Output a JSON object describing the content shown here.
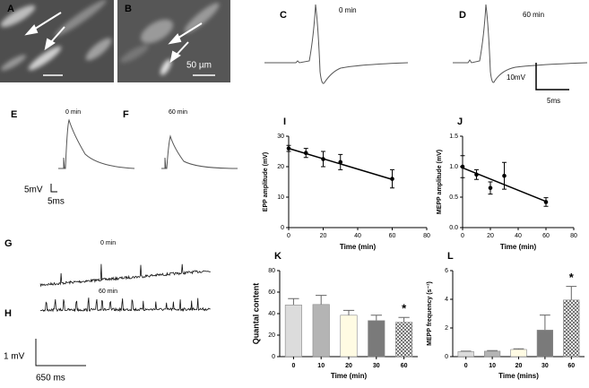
{
  "panels": {
    "A": {
      "label": "A"
    },
    "B": {
      "label": "B",
      "scale": "50 µm"
    },
    "C": {
      "label": "C",
      "time": "0 min"
    },
    "D": {
      "label": "D",
      "time": "60 min",
      "scale_v": "10mV",
      "scale_t": "5ms"
    },
    "E": {
      "label": "E",
      "time": "0 min",
      "scale_v": "5mV",
      "scale_t": "5ms"
    },
    "F": {
      "label": "F",
      "time": "60 min"
    },
    "G": {
      "label": "G",
      "time": "0 min",
      "scale_v": "1 mV",
      "scale_t": "650 ms"
    },
    "H": {
      "label": "H",
      "time": "60 min"
    }
  },
  "chart_data": [
    {
      "type": "scatter",
      "label": "I",
      "xlabel": "Time (min)",
      "ylabel": "EPP amplitude (mV)",
      "x": [
        0,
        10,
        20,
        30,
        60
      ],
      "values": [
        26,
        24.5,
        22.5,
        21.5,
        16
      ],
      "errors": [
        1,
        1.5,
        2.5,
        2.5,
        3
      ],
      "fit": {
        "x": [
          0,
          60
        ],
        "values": [
          26,
          15.8
        ]
      },
      "xlim": [
        0,
        80
      ],
      "xticks": [
        0,
        20,
        40,
        60,
        80
      ],
      "ylim": [
        0,
        30
      ],
      "yticks": [
        0,
        10,
        20,
        30
      ],
      "color": "#000000"
    },
    {
      "type": "scatter",
      "label": "J",
      "xlabel": "Time (min)",
      "ylabel": "MEPP amplitude (mV)",
      "x": [
        0,
        10,
        20,
        30,
        60
      ],
      "values": [
        1.0,
        0.87,
        0.65,
        0.85,
        0.42
      ],
      "errors": [
        0.18,
        0.08,
        0.1,
        0.22,
        0.07
      ],
      "fit": {
        "x": [
          0,
          60
        ],
        "values": [
          0.98,
          0.43
        ]
      },
      "xlim": [
        0,
        80
      ],
      "xticks": [
        0,
        20,
        40,
        60,
        80
      ],
      "ylim": [
        0,
        1.5
      ],
      "yticks": [
        {
          "value": 0,
          "label": "0.0"
        },
        0.5,
        {
          "value": 1,
          "label": "1.0"
        },
        1.5
      ],
      "color": "#000000"
    },
    {
      "type": "bar",
      "label": "K",
      "xlabel": "Time (min)",
      "ylabel": "Quantal content",
      "categories": [
        "0",
        "10",
        "20",
        "30",
        "60"
      ],
      "values": [
        48,
        48.5,
        38.5,
        33.5,
        32
      ],
      "errors": [
        6,
        8.5,
        4.5,
        5,
        4.5
      ],
      "colors": [
        "#dcdcdc",
        "#b4b4b4",
        "#fffbe3",
        "#7a7a7a",
        "#ffffff"
      ],
      "hatched": [
        false,
        false,
        false,
        false,
        true
      ],
      "annotations": [
        {
          "text": "*",
          "category": "60"
        }
      ],
      "ylim": [
        0,
        80
      ],
      "yticks": [
        0,
        20,
        40,
        60,
        80
      ]
    },
    {
      "type": "bar",
      "label": "L",
      "xlabel": "Time (mins)",
      "ylabel": "MEPP frequency (s⁻¹)",
      "categories": [
        "0",
        "10",
        "20",
        "30",
        "60"
      ],
      "values": [
        0.35,
        0.38,
        0.5,
        1.85,
        3.95
      ],
      "errors": [
        0.03,
        0.04,
        0.05,
        1.05,
        0.95
      ],
      "colors": [
        "#dcdcdc",
        "#b4b4b4",
        "#fffbe3",
        "#7a7a7a",
        "#ffffff"
      ],
      "hatched": [
        false,
        false,
        false,
        false,
        true
      ],
      "annotations": [
        {
          "text": "*",
          "category": "60"
        }
      ],
      "ylim": [
        0,
        6
      ],
      "yticks": [
        0,
        2,
        4,
        6
      ]
    }
  ]
}
